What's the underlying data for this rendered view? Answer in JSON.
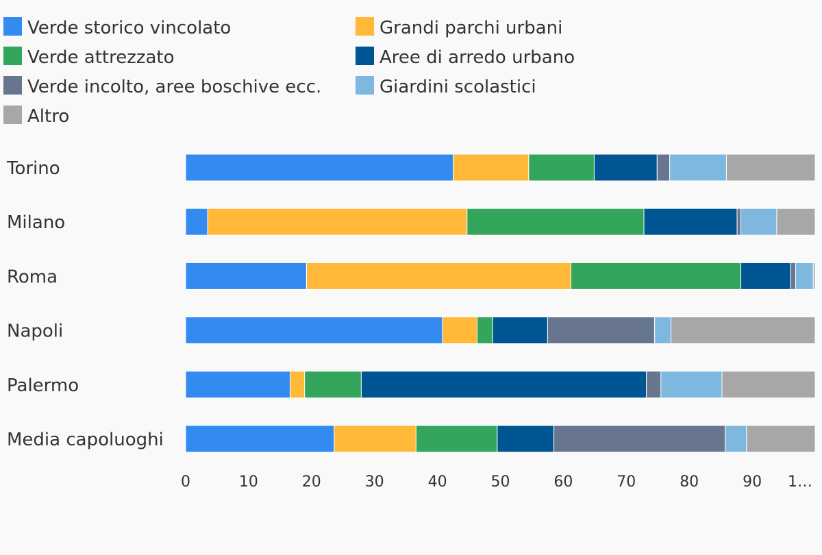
{
  "chart_data": {
    "type": "bar",
    "orientation": "horizontal",
    "stacked": true,
    "title": "",
    "xlabel": "",
    "ylabel": "",
    "xlim": [
      0,
      100
    ],
    "grid": false,
    "legend_position": "top",
    "categories": [
      "Torino",
      "Milano",
      "Roma",
      "Napoli",
      "Palermo",
      "Media capoluoghi"
    ],
    "x_ticks": [
      "0",
      "10",
      "20",
      "30",
      "40",
      "50",
      "60",
      "70",
      "80",
      "90",
      "1…"
    ],
    "series": [
      {
        "name": "Verde storico vincolato",
        "color": "#338bef",
        "values": [
          42.5,
          3.5,
          19.2,
          40.8,
          16.6,
          23.6
        ]
      },
      {
        "name": "Grandi parchi urbani",
        "color": "#ffb838",
        "values": [
          12.0,
          41.2,
          42.0,
          5.5,
          2.3,
          13.0
        ]
      },
      {
        "name": "Verde attrezzato",
        "color": "#33a65b",
        "values": [
          10.4,
          28.1,
          27.0,
          2.5,
          9.0,
          12.9
        ]
      },
      {
        "name": "Aree di arredo urbano",
        "color": "#005593",
        "values": [
          10.0,
          14.8,
          7.9,
          8.7,
          45.3,
          9.0
        ]
      },
      {
        "name": "Verde incolto, aree boschive ecc.",
        "color": "#67768e",
        "values": [
          2.0,
          0.6,
          0.8,
          17.0,
          2.3,
          27.2
        ]
      },
      {
        "name": "Giardini scolastici",
        "color": "#7fb8df",
        "values": [
          9.0,
          5.7,
          2.8,
          2.6,
          9.7,
          3.4
        ]
      },
      {
        "name": "Altro",
        "color": "#a7a7a7",
        "values": [
          14.1,
          6.1,
          0.3,
          22.9,
          14.8,
          10.9
        ]
      }
    ]
  }
}
